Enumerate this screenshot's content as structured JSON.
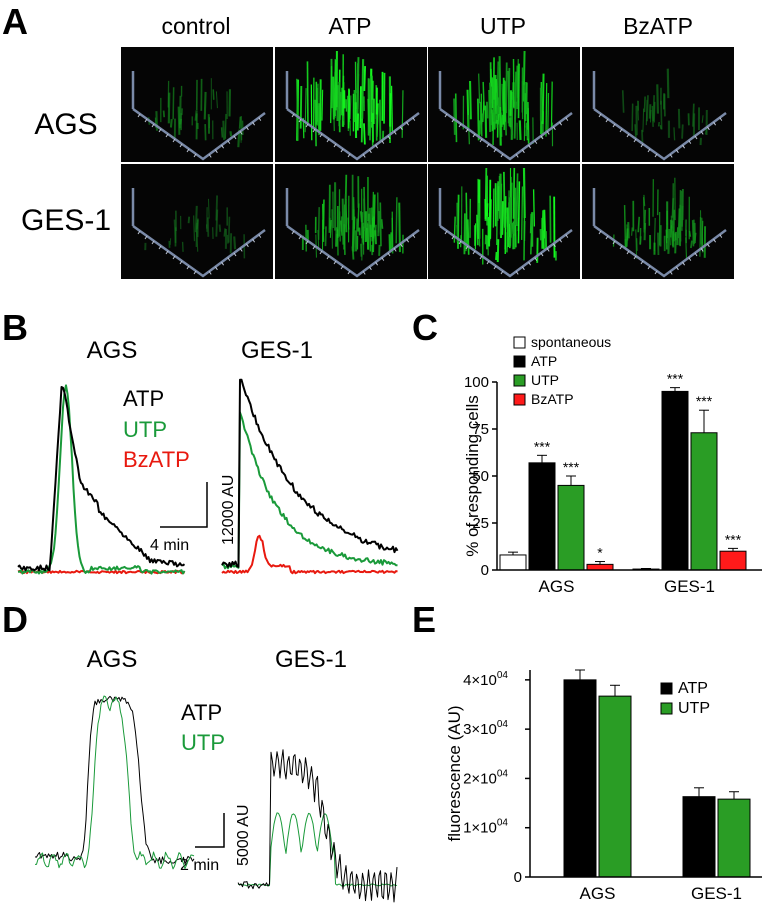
{
  "panel_letters": {
    "a": "A",
    "b": "B",
    "c": "C",
    "d": "D",
    "e": "E"
  },
  "colors": {
    "atp": "#000000",
    "utp": "#1a9a3a",
    "bzatp": "#e8190f",
    "utp_bar": "#2a9d25",
    "bzatp_bar": "#ff1a1a",
    "spontaneous": "#ffffff"
  },
  "panel_a": {
    "columns": [
      "control",
      "ATP",
      "UTP",
      "BzATP"
    ],
    "rows": [
      "AGS",
      "GES-1"
    ],
    "brightness": [
      [
        0.35,
        1.0,
        0.85,
        0.25
      ],
      [
        0.2,
        0.7,
        1.0,
        0.55
      ]
    ],
    "density": [
      [
        0.45,
        1.0,
        0.95,
        0.4
      ],
      [
        0.35,
        0.9,
        1.0,
        0.75
      ]
    ]
  },
  "panel_b": {
    "cells": [
      "AGS",
      "GES-1"
    ],
    "legend": [
      {
        "label": "ATP",
        "color": "#000000"
      },
      {
        "label": "UTP",
        "color": "#1a9a3a"
      },
      {
        "label": "BzATP",
        "color": "#e8190f"
      }
    ],
    "scale_bar": {
      "time": "4 min",
      "amplitude": "12000 AU"
    }
  },
  "panel_c": {
    "chart_data": {
      "type": "bar",
      "ylabel": "% of responding cells",
      "ylim": [
        0,
        100
      ],
      "yticks": [
        0,
        25,
        50,
        75,
        100
      ],
      "categories": [
        "AGS",
        "GES-1"
      ],
      "series": [
        {
          "name": "spontaneous",
          "color": "#ffffff",
          "values": [
            8,
            0.5
          ],
          "errors": [
            1.5,
            0.3
          ],
          "sig": [
            "",
            ""
          ]
        },
        {
          "name": "ATP",
          "color": "#000000",
          "values": [
            57,
            95
          ],
          "errors": [
            4,
            2
          ],
          "sig": [
            "***",
            "***"
          ]
        },
        {
          "name": "UTP",
          "color": "#2a9d25",
          "values": [
            45,
            73
          ],
          "errors": [
            5,
            12
          ],
          "sig": [
            "***",
            "***"
          ]
        },
        {
          "name": "BzATP",
          "color": "#ff1a1a",
          "values": [
            3,
            10
          ],
          "errors": [
            1.5,
            1.5
          ],
          "sig": [
            "*",
            "***"
          ]
        }
      ]
    }
  },
  "panel_d": {
    "cells": [
      "AGS",
      "GES-1"
    ],
    "legend": [
      {
        "label": "ATP",
        "color": "#000000"
      },
      {
        "label": "UTP",
        "color": "#1a9a3a"
      }
    ],
    "scale_bar": {
      "time": "2 min",
      "amplitude": "5000 AU"
    }
  },
  "panel_e": {
    "chart_data": {
      "type": "bar",
      "ylabel": "fluorescence (AU)",
      "ylim": [
        0,
        42000
      ],
      "ytick_mantissas": [
        "0",
        "1×10",
        "2×10",
        "3×10",
        "4×10"
      ],
      "ytick_exponent": "04",
      "yticks": [
        0,
        10000,
        20000,
        30000,
        40000
      ],
      "categories": [
        "AGS",
        "GES-1"
      ],
      "series": [
        {
          "name": "ATP",
          "color": "#000000",
          "values": [
            40000,
            16300
          ],
          "errors": [
            2000,
            1800
          ]
        },
        {
          "name": "UTP",
          "color": "#2a9d25",
          "values": [
            36700,
            15800
          ],
          "errors": [
            2200,
            1500
          ]
        }
      ]
    }
  }
}
